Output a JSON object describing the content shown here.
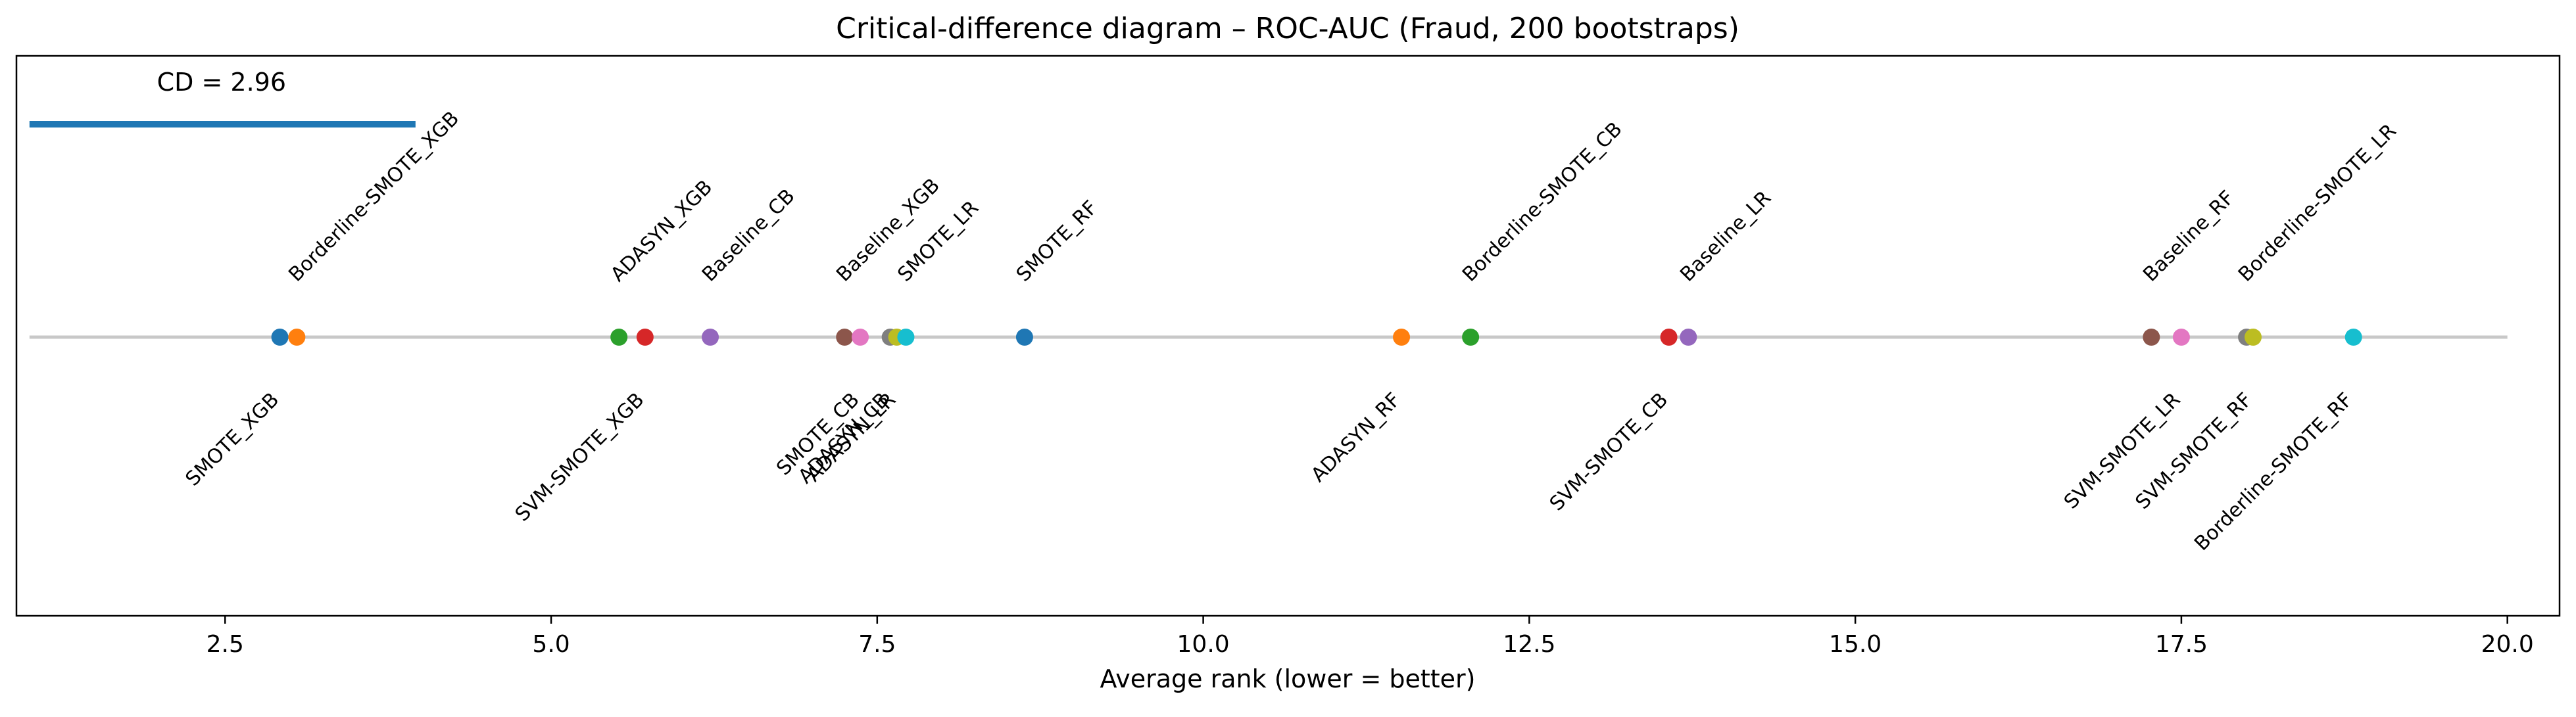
{
  "chart_data": {
    "type": "scatter",
    "title": "Critical-difference diagram – ROC-AUC (Fraud, 200 bootstraps)",
    "xlabel": "Average rank (lower = better)",
    "xlim": [
      0.9,
      20.4
    ],
    "xticks": [
      2.5,
      5.0,
      7.5,
      10.0,
      12.5,
      15.0,
      17.5,
      20.0
    ],
    "xtick_labels": [
      "2.5",
      "5.0",
      "7.5",
      "10.0",
      "12.5",
      "15.0",
      "17.5",
      "20.0"
    ],
    "rank_line": [
      1,
      20
    ],
    "cd": {
      "label": "CD = 2.96",
      "value": 2.96,
      "start": 1.0,
      "end": 3.96,
      "color": "#1f77b4"
    },
    "points": [
      {
        "name": "SMOTE_XGB",
        "rank": 2.92,
        "color": "#1f77b4",
        "side": "below"
      },
      {
        "name": "Borderline-SMOTE_XGB",
        "rank": 3.05,
        "color": "#ff7f0e",
        "side": "above"
      },
      {
        "name": "ADASYN_XGB",
        "rank": 5.52,
        "color": "#2ca02c",
        "side": "above"
      },
      {
        "name": "SVM-SMOTE_XGB",
        "rank": 5.72,
        "color": "#d62728",
        "side": "below"
      },
      {
        "name": "Baseline_CB",
        "rank": 6.22,
        "color": "#9467bd",
        "side": "above"
      },
      {
        "name": "Baseline_XGB",
        "rank": 7.25,
        "color": "#8c564b",
        "side": "above"
      },
      {
        "name": "SMOTE_CB",
        "rank": 7.37,
        "color": "#e377c2",
        "side": "below"
      },
      {
        "name": "ADASYN_CB",
        "rank": 7.6,
        "color": "#7f7f7f",
        "side": "below"
      },
      {
        "name": "ADASYN_LR",
        "rank": 7.65,
        "color": "#bcbd22",
        "side": "below"
      },
      {
        "name": "SMOTE_LR",
        "rank": 7.72,
        "color": "#17becf",
        "side": "above"
      },
      {
        "name": "SMOTE_RF",
        "rank": 8.63,
        "color": "#1f77b4",
        "side": "above"
      },
      {
        "name": "ADASYN_RF",
        "rank": 11.52,
        "color": "#ff7f0e",
        "side": "below"
      },
      {
        "name": "Borderline-SMOTE_CB",
        "rank": 12.05,
        "color": "#2ca02c",
        "side": "above"
      },
      {
        "name": "SVM-SMOTE_CB",
        "rank": 13.57,
        "color": "#d62728",
        "side": "below"
      },
      {
        "name": "Baseline_LR",
        "rank": 13.72,
        "color": "#9467bd",
        "side": "above"
      },
      {
        "name": "Baseline_RF",
        "rank": 17.27,
        "color": "#8c564b",
        "side": "above"
      },
      {
        "name": "SVM-SMOTE_LR",
        "rank": 17.5,
        "color": "#e377c2",
        "side": "below"
      },
      {
        "name": "Borderline-SMOTE_LR",
        "rank": 18.0,
        "color": "#7f7f7f",
        "side": "above"
      },
      {
        "name": "SVM-SMOTE_RF",
        "rank": 18.05,
        "color": "#bcbd22",
        "side": "below"
      },
      {
        "name": "Borderline-SMOTE_RF",
        "rank": 18.82,
        "color": "#17becf",
        "side": "below"
      }
    ]
  }
}
